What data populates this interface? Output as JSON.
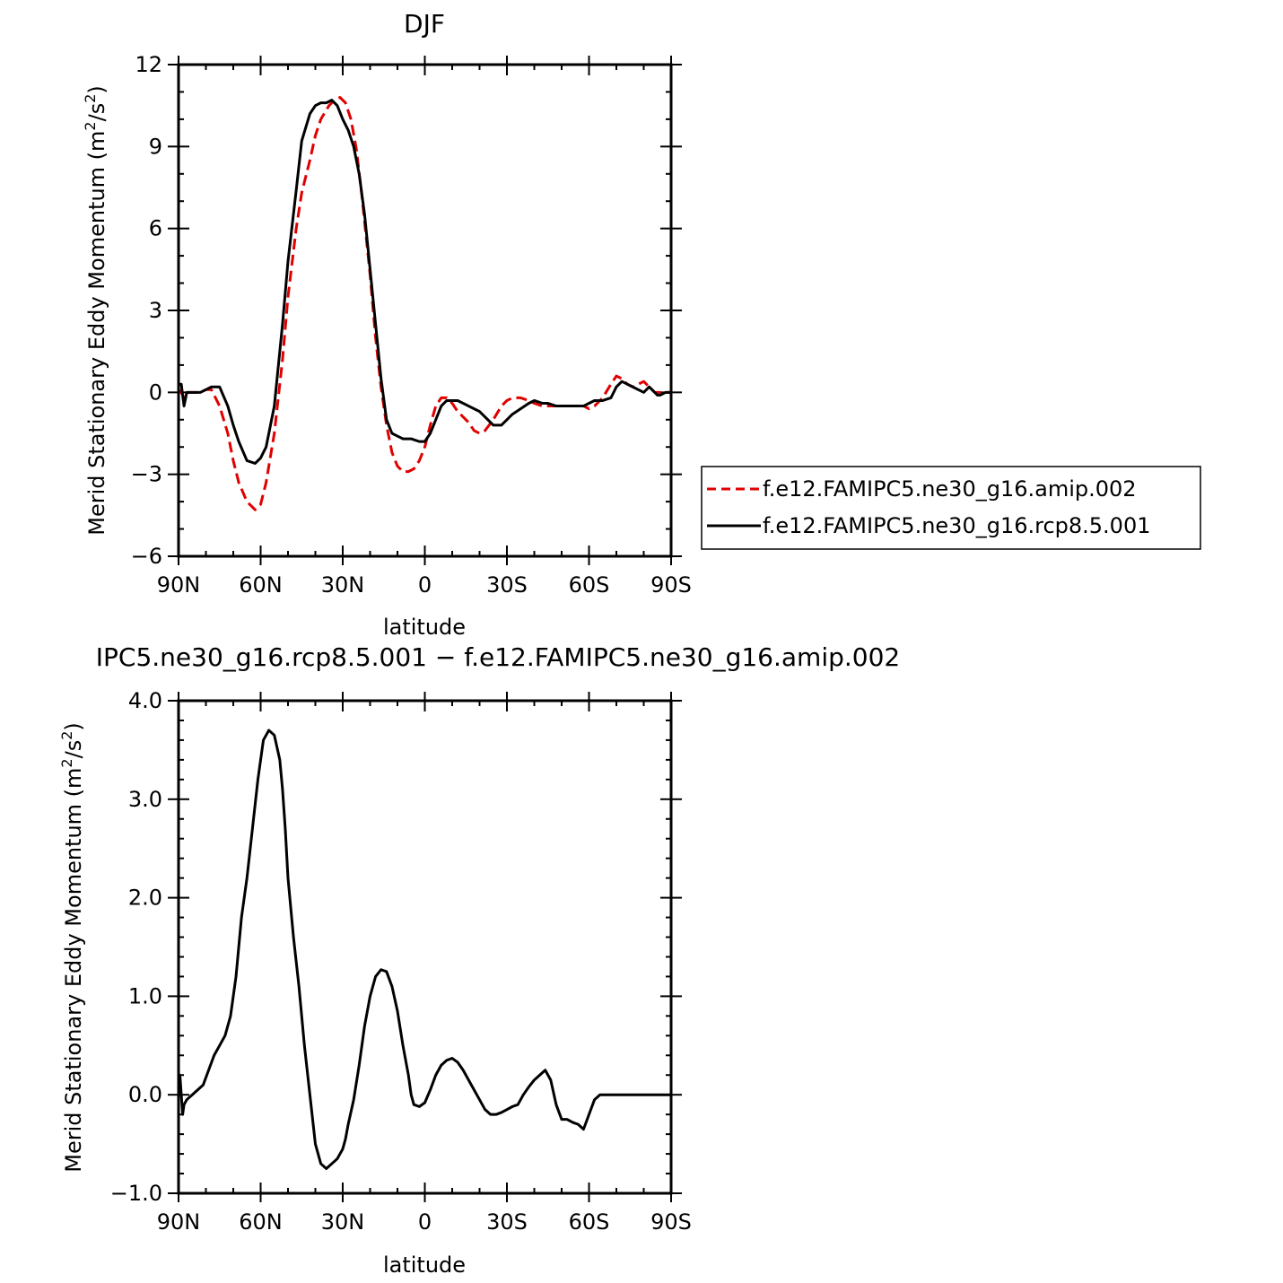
{
  "chart_data": [
    {
      "type": "line",
      "title": "DJF",
      "xlabel": "latitude",
      "ylabel_prefix": "Merid Stationary Eddy Momentum  (m",
      "ylabel_sup1": "2",
      "ylabel_mid": "/s",
      "ylabel_sup2": "2",
      "ylabel_suffix": ")",
      "x_ticks": [
        -90,
        -60,
        -30,
        0,
        30,
        60,
        90
      ],
      "x_tick_labels": [
        "90N",
        "60N",
        "30N",
        "0",
        "30S",
        "60S",
        "90S"
      ],
      "xlim": [
        -90,
        90
      ],
      "ylim": [
        -6,
        12
      ],
      "y_ticks": [
        -6,
        -3,
        0,
        3,
        6,
        9,
        12
      ],
      "y_tick_labels": [
        "−6",
        "−3",
        "0",
        "3",
        "6",
        "9",
        "12"
      ],
      "legend_position": "right",
      "series": [
        {
          "name": "f.e12.FAMIPC5.ne30_g16.amip.002",
          "color": "#e00000",
          "dash": "dashed",
          "x": [
            -90,
            -89,
            -88,
            -87,
            -85,
            -82,
            -80,
            -78,
            -75,
            -72,
            -70,
            -68,
            -65,
            -62,
            -60,
            -58,
            -55,
            -52,
            -50,
            -47,
            -45,
            -42,
            -40,
            -38,
            -35,
            -33,
            -31,
            -29,
            -27,
            -25,
            -23,
            -20,
            -18,
            -16,
            -14,
            -12,
            -10,
            -8,
            -6,
            -4,
            -2,
            0,
            2,
            4,
            6,
            8,
            10,
            12,
            14,
            16,
            18,
            20,
            22,
            25,
            28,
            30,
            32,
            35,
            38,
            40,
            43,
            45,
            48,
            50,
            52,
            55,
            58,
            60,
            62,
            65,
            68,
            70,
            72,
            74,
            76,
            78,
            80,
            82,
            84,
            85,
            86,
            88,
            90
          ],
          "y": [
            0.1,
            0.0,
            -0.2,
            0.0,
            0.0,
            0.0,
            0.1,
            0.1,
            -0.5,
            -1.5,
            -2.5,
            -3.3,
            -4.0,
            -4.3,
            -4.1,
            -3.3,
            -1.5,
            1.2,
            3.5,
            6.0,
            7.3,
            8.5,
            9.4,
            10.0,
            10.5,
            10.7,
            10.8,
            10.6,
            10.0,
            8.9,
            7.2,
            4.3,
            2.0,
            0.2,
            -1.2,
            -2.2,
            -2.7,
            -2.9,
            -2.9,
            -2.8,
            -2.5,
            -2.0,
            -1.2,
            -0.5,
            -0.2,
            -0.2,
            -0.4,
            -0.7,
            -0.9,
            -1.1,
            -1.4,
            -1.5,
            -1.4,
            -1.0,
            -0.5,
            -0.3,
            -0.2,
            -0.2,
            -0.3,
            -0.4,
            -0.5,
            -0.5,
            -0.5,
            -0.5,
            -0.5,
            -0.5,
            -0.5,
            -0.6,
            -0.5,
            -0.2,
            0.3,
            0.6,
            0.5,
            0.3,
            0.2,
            0.3,
            0.4,
            0.2,
            0.0,
            0.0,
            0.0,
            0.0,
            0.0
          ]
        },
        {
          "name": "f.e12.FAMIPC5.ne30_g16.rcp8.5.001",
          "color": "#000000",
          "dash": "solid",
          "x": [
            -90,
            -89,
            -88,
            -87,
            -85,
            -82,
            -80,
            -78,
            -75,
            -72,
            -70,
            -68,
            -65,
            -62,
            -60,
            -58,
            -55,
            -52,
            -50,
            -47,
            -45,
            -42,
            -40,
            -38,
            -36,
            -34,
            -32,
            -30,
            -28,
            -26,
            -24,
            -22,
            -20,
            -18,
            -16,
            -14,
            -12,
            -10,
            -8,
            -5,
            -2,
            0,
            2,
            4,
            6,
            8,
            10,
            12,
            14,
            16,
            18,
            20,
            22,
            25,
            28,
            30,
            32,
            35,
            38,
            40,
            43,
            45,
            48,
            50,
            52,
            55,
            58,
            60,
            62,
            65,
            68,
            70,
            72,
            74,
            76,
            78,
            80,
            82,
            84,
            85,
            86,
            88,
            90
          ],
          "y": [
            0.3,
            0.3,
            -0.5,
            0.0,
            0.0,
            0.0,
            0.1,
            0.2,
            0.2,
            -0.5,
            -1.2,
            -1.8,
            -2.5,
            -2.6,
            -2.4,
            -2.0,
            -0.5,
            2.5,
            4.8,
            7.4,
            9.2,
            10.2,
            10.5,
            10.6,
            10.6,
            10.7,
            10.5,
            10.0,
            9.6,
            9.0,
            8.0,
            6.5,
            4.5,
            2.5,
            0.5,
            -1.0,
            -1.5,
            -1.6,
            -1.7,
            -1.7,
            -1.8,
            -1.8,
            -1.5,
            -1.0,
            -0.5,
            -0.3,
            -0.3,
            -0.3,
            -0.4,
            -0.5,
            -0.6,
            -0.7,
            -0.9,
            -1.2,
            -1.2,
            -1.0,
            -0.8,
            -0.6,
            -0.4,
            -0.3,
            -0.4,
            -0.4,
            -0.5,
            -0.5,
            -0.5,
            -0.5,
            -0.5,
            -0.4,
            -0.3,
            -0.3,
            -0.2,
            0.2,
            0.4,
            0.3,
            0.2,
            0.1,
            0.0,
            0.2,
            0.0,
            -0.1,
            -0.1,
            0.0,
            0.0
          ]
        }
      ]
    },
    {
      "type": "line",
      "title": "IPC5.ne30_g16.rcp8.5.001 − f.e12.FAMIPC5.ne30_g16.amip.002",
      "xlabel": "latitude",
      "ylabel_prefix": "Merid Stationary Eddy Momentum  (m",
      "ylabel_sup1": "2",
      "ylabel_mid": "/s",
      "ylabel_sup2": "2",
      "ylabel_suffix": ")",
      "x_ticks": [
        -90,
        -60,
        -30,
        0,
        30,
        60,
        90
      ],
      "x_tick_labels": [
        "90N",
        "60N",
        "30N",
        "0",
        "30S",
        "60S",
        "90S"
      ],
      "xlim": [
        -90,
        90
      ],
      "ylim": [
        -1.0,
        4.0
      ],
      "y_ticks": [
        -1.0,
        0.0,
        1.0,
        2.0,
        3.0,
        4.0
      ],
      "y_tick_labels": [
        "−1.0",
        "0.0",
        "1.0",
        "2.0",
        "3.0",
        "4.0"
      ],
      "series": [
        {
          "color": "#000000",
          "dash": "solid",
          "x": [
            -90,
            -89.5,
            -89,
            -88.5,
            -88,
            -87,
            -85,
            -83,
            -81,
            -79,
            -77,
            -75,
            -73,
            -71,
            -69,
            -67,
            -65,
            -63,
            -61,
            -59,
            -57,
            -55,
            -53,
            -52,
            -51,
            -50,
            -48,
            -46,
            -44,
            -42,
            -40,
            -38,
            -36,
            -34,
            -32,
            -30,
            -29,
            -28,
            -26,
            -24,
            -22,
            -20,
            -18,
            -16,
            -14,
            -12,
            -10,
            -8,
            -6,
            -5,
            -4,
            -2,
            0,
            2,
            4,
            6,
            8,
            10,
            12,
            14,
            16,
            18,
            20,
            22,
            24,
            26,
            28,
            30,
            32,
            34,
            36,
            38,
            40,
            42,
            44,
            46,
            48,
            50,
            52,
            54,
            56,
            58,
            60,
            62,
            64,
            66,
            68,
            70,
            72,
            74,
            76,
            78,
            80,
            82,
            84,
            85,
            86,
            88,
            90
          ],
          "y": [
            0.0,
            0.2,
            0.0,
            -0.2,
            -0.1,
            -0.05,
            0.0,
            0.05,
            0.1,
            0.25,
            0.4,
            0.5,
            0.6,
            0.8,
            1.2,
            1.8,
            2.2,
            2.7,
            3.2,
            3.6,
            3.7,
            3.65,
            3.4,
            3.1,
            2.7,
            2.2,
            1.6,
            1.1,
            0.5,
            0.0,
            -0.5,
            -0.7,
            -0.75,
            -0.7,
            -0.65,
            -0.55,
            -0.45,
            -0.3,
            -0.05,
            0.3,
            0.7,
            1.0,
            1.2,
            1.27,
            1.25,
            1.1,
            0.85,
            0.5,
            0.2,
            0.0,
            -0.1,
            -0.12,
            -0.08,
            0.05,
            0.2,
            0.3,
            0.35,
            0.37,
            0.33,
            0.25,
            0.15,
            0.05,
            -0.05,
            -0.15,
            -0.2,
            -0.2,
            -0.18,
            -0.15,
            -0.12,
            -0.1,
            0.0,
            0.08,
            0.15,
            0.2,
            0.25,
            0.15,
            -0.1,
            -0.25,
            -0.25,
            -0.28,
            -0.3,
            -0.35,
            -0.2,
            -0.05,
            0.0,
            0.0,
            0.0,
            0.0,
            0.0,
            0.0,
            0.0,
            0.0,
            0.0,
            0.0,
            0.0,
            0.0,
            0.0,
            0.0,
            0.0
          ]
        }
      ]
    }
  ]
}
